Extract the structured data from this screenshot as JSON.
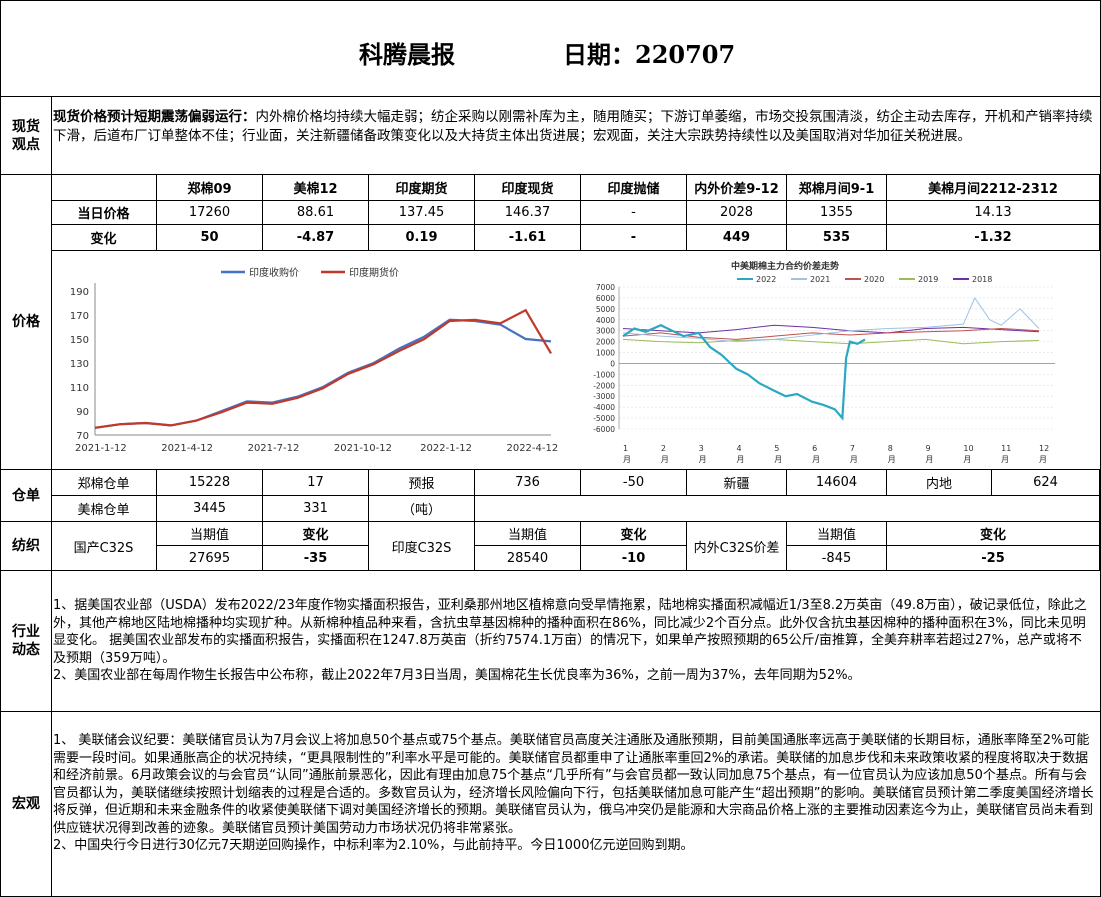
{
  "header": {
    "title": "科腾晨报",
    "date_label": "日期：220707"
  },
  "spot": {
    "section_label": "现货\n观点",
    "headline": "现货价格预计短期震荡偏弱运行：",
    "body": "内外棉价格均持续大幅走弱；纺企采购以刚需补库为主，随用随买；下游订单萎缩，市场交投氛围清淡，纺企主动去库存，开机和产销率持续下滑，后道布厂订单整体不佳；行业面，关注新疆储备政策变化以及大持货主体出货进展；宏观面，关注大宗跌势持续性以及美国取消对华加征关税进展。"
  },
  "price": {
    "section_label": "价格",
    "headers": [
      "郑棉09",
      "美棉12",
      "印度期货",
      "印度现货",
      "印度抛储",
      "内外价差9-12",
      "郑棉月间9-1",
      "美棉月间2212-2312"
    ],
    "row1_label": "当日价格",
    "row1": [
      "17260",
      "88.61",
      "137.45",
      "146.37",
      "-",
      "2028",
      "1355",
      "14.13"
    ],
    "row2_label": "变化",
    "row2": [
      "50",
      "-4.87",
      "0.19",
      "-1.61",
      "-",
      "449",
      "535",
      "-1.32"
    ]
  },
  "chart_data": [
    {
      "type": "line",
      "legend": [
        "印度收购价",
        "印度期货价"
      ],
      "colors": [
        "#4472C4",
        "#C0392B"
      ],
      "legend_placement": "top",
      "x_ticks": [
        "2021-1-12",
        "2021-4-12",
        "2021-7-12",
        "2021-10-12",
        "2022-1-12",
        "2022-4-12"
      ],
      "y_ticks": [
        70,
        90,
        110,
        130,
        150,
        170,
        190
      ],
      "ylim": [
        70,
        190
      ],
      "grid": false,
      "series": [
        {
          "name": "印度收购价",
          "x": [
            0,
            1,
            2,
            3,
            4,
            5,
            6,
            7,
            8,
            9,
            10,
            11,
            12,
            13,
            14,
            15,
            16,
            17,
            18
          ],
          "values": [
            76,
            79,
            80,
            78,
            82,
            90,
            98,
            97,
            102,
            110,
            122,
            130,
            142,
            152,
            166,
            165,
            162,
            150,
            148
          ]
        },
        {
          "name": "印度期货价",
          "x": [
            0,
            1,
            2,
            3,
            4,
            5,
            6,
            7,
            8,
            9,
            10,
            11,
            12,
            13,
            14,
            15,
            16,
            17,
            18
          ],
          "values": [
            76,
            79,
            80,
            78,
            82,
            89,
            97,
            96,
            101,
            109,
            121,
            129,
            140,
            150,
            165,
            166,
            163,
            174,
            138
          ]
        }
      ]
    },
    {
      "type": "line",
      "title": "中美期棉主力合约价差走势",
      "legend": [
        "2022",
        "2021",
        "2020",
        "2019",
        "2018"
      ],
      "colors": [
        "#2AA8C2",
        "#9DC3E6",
        "#C0504D",
        "#9BBB59",
        "#7030A0"
      ],
      "legend_placement": "top",
      "x_ticks": [
        "1\n月",
        "2\n月",
        "3\n月",
        "4\n月",
        "5\n月",
        "6\n月",
        "7\n月",
        "8\n月",
        "9\n月",
        "10\n月",
        "11\n月",
        "12\n月"
      ],
      "y_ticks": [
        -6000,
        -5000,
        -4000,
        -3000,
        -2000,
        -1000,
        0,
        1000,
        2000,
        3000,
        4000,
        5000,
        6000,
        7000
      ],
      "ylim": [
        -6000,
        7000
      ],
      "grid": true,
      "series": [
        {
          "name": "2022",
          "x": [
            0,
            0.3,
            0.6,
            1,
            1.3,
            1.6,
            2,
            2.3,
            2.6,
            3,
            3.3,
            3.6,
            4,
            4.3,
            4.6,
            5,
            5.3,
            5.6,
            5.8,
            5.9,
            6,
            6.2,
            6.4
          ],
          "values": [
            2500,
            3200,
            2900,
            3500,
            3000,
            2500,
            2800,
            1500,
            800,
            -500,
            -1000,
            -1800,
            -2500,
            -3000,
            -2800,
            -3500,
            -3800,
            -4200,
            -5000,
            500,
            2000,
            1800,
            2200
          ]
        },
        {
          "name": "2021",
          "x": [
            0,
            1,
            2,
            3,
            4,
            5,
            6,
            7,
            8,
            9,
            9.3,
            9.7,
            10,
            10.5,
            11
          ],
          "values": [
            2800,
            2500,
            2300,
            2000,
            2200,
            2600,
            3000,
            3200,
            3300,
            3600,
            6000,
            4000,
            3500,
            5000,
            3200
          ]
        },
        {
          "name": "2020",
          "x": [
            0,
            1,
            2,
            3,
            4,
            5,
            6,
            7,
            8,
            9,
            10,
            11
          ],
          "values": [
            2500,
            2800,
            2400,
            2200,
            2500,
            2800,
            2600,
            2800,
            2900,
            3000,
            3200,
            3000
          ]
        },
        {
          "name": "2019",
          "x": [
            0,
            1,
            2,
            3,
            4,
            5,
            6,
            7,
            8,
            9,
            10,
            11
          ],
          "values": [
            2200,
            2000,
            1900,
            2100,
            2200,
            2000,
            1800,
            2000,
            2200,
            1800,
            2000,
            2100
          ]
        },
        {
          "name": "2018",
          "x": [
            0,
            1,
            2,
            3,
            4,
            5,
            6,
            7,
            8,
            9,
            10,
            11
          ],
          "values": [
            3200,
            3000,
            2800,
            3100,
            3500,
            3300,
            3000,
            2800,
            3200,
            3300,
            3100,
            2900
          ]
        }
      ]
    }
  ],
  "warehouse": {
    "section_label": "仓单",
    "r1": [
      "郑棉仓单",
      "15228",
      "17",
      "预报",
      "736",
      "-50",
      "新疆",
      "14604",
      "内地",
      "624"
    ],
    "r2": [
      "美棉仓单",
      "3445",
      "331",
      "（吨）"
    ]
  },
  "textile": {
    "section_label": "纺织",
    "domestic_label": "国产C32S",
    "india_label": "印度C32S",
    "spread_label": "内外C32S价差",
    "cur_label": "当期值",
    "chg_label": "变化",
    "domestic": [
      "27695",
      "-35"
    ],
    "india": [
      "28540",
      "-10"
    ],
    "spread": [
      "-845",
      "-25"
    ]
  },
  "industry": {
    "section_label": "行业\n动态",
    "p1": "1、据美国农业部（USDA）发布2022/23年度作物实播面积报告，亚利桑那州地区植棉意向受旱情拖累，陆地棉实播面积减幅近1/3至8.2万英亩（49.8万亩），破记录低位，除此之外，其他产棉地区陆地棉播种均实现扩种。从新棉种植品种来看，含抗虫草基因棉种的播种面积在86%，同比减少2个百分点。此外仅含抗虫基因棉种的播种面积在3%，同比未见明显变化。  据美国农业部发布的实播面积报告，实播面积在1247.8万英亩（折约7574.1万亩）的情况下，如果单产按照预期的65公斤/亩推算，全美弃耕率若超过27%，总产或将不及预期（359万吨）。",
    "p2": "2、美国农业部在每周作物生长报告中公布称，截止2022年7月3日当周，美国棉花生长优良率为36%，之前一周为37%，去年同期为52%。"
  },
  "macro": {
    "section_label": "宏观",
    "p1": "1、  美联储会议纪要：美联储官员认为7月会议上将加息50个基点或75个基点。美联储官员高度关注通胀及通胀预期，目前美国通胀率远高于美联储的长期目标，通胀率降至2%可能需要一段时间。如果通胀高企的状况持续，“更具限制性的”利率水平是可能的。美联储官员都重申了让通胀率重回2%的承诺。美联储的加息步伐和未来政策收紧的程度将取决于数据和经济前景。6月政策会议的与会官员“认同”通胀前景恶化，因此有理由加息75个基点“几乎所有”与会官员都一致认同加息75个基点，有一位官员认为应该加息50个基点。所有与会官员都认为，美联储继续按照计划缩表的过程是合适的。多数官员认为，经济增长风险偏向下行，包括美联储加息可能产生“超出预期”的影响。美联储官员预计第二季度美国经济增长将反弹，但近期和未来金融条件的收紧使美联储下调对美国经济增长的预期。美联储官员认为，俄乌冲突仍是能源和大宗商品价格上涨的主要推动因素迄今为止，美联储官员尚未看到供应链状况得到改善的迹象。美联储官员预计美国劳动力市场状况仍将非常紧张。",
    "p2": "2、中国央行今日进行30亿元7天期逆回购操作，中标利率为2.10%，与此前持平。今日1000亿元逆回购到期。"
  }
}
